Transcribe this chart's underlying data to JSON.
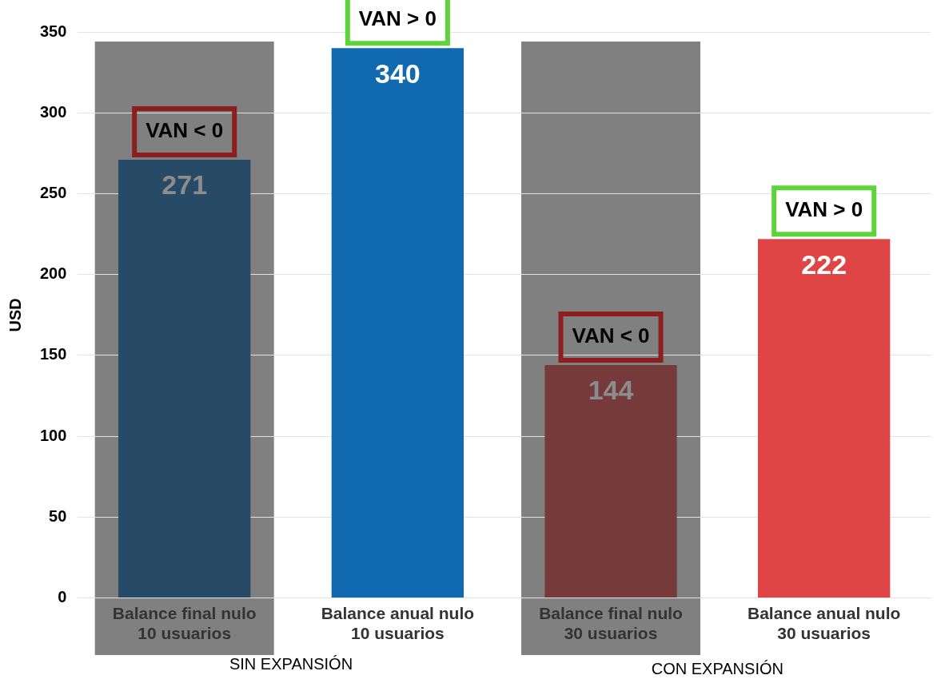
{
  "chart_data": {
    "type": "bar",
    "ylabel": "USD",
    "categories": [
      "Balance final nulo 10 usuarios",
      "Balance anual nulo 10 usuarios",
      "Balance final nulo 30 usuarios",
      "Balance anual nulo 30 usuarios"
    ],
    "values": [
      271,
      340,
      144,
      222
    ],
    "colors": [
      "#274a66",
      "#1169b0",
      "#773a3b",
      "#e04546"
    ],
    "ylim": [
      0,
      350
    ],
    "yticks": [
      0,
      50,
      100,
      150,
      200,
      250,
      300,
      350
    ],
    "grid": "y",
    "data_labels": true,
    "bands": [
      {
        "axis": "x",
        "from": "Balance final nulo 10 usuarios",
        "to": "Balance final nulo 10 usuarios",
        "color": "#808080"
      },
      {
        "axis": "x",
        "from": "Balance final nulo 30 usuarios",
        "to": "Balance final nulo 30 usuarios",
        "color": "#808080"
      }
    ],
    "annotations": [
      {
        "text": "VAN < 0",
        "x": "Balance final nulo 10 usuarios",
        "y": 271
      },
      {
        "text": "VAN > 0",
        "x": "Balance anual nulo 10 usuarios",
        "y": 340
      },
      {
        "text": "VAN < 0",
        "x": "Balance final nulo 30 usuarios",
        "y": 144
      },
      {
        "text": "VAN > 0",
        "x": "Balance anual nulo 30 usuarios",
        "y": 222
      },
      "SIN EXPANSIÓN",
      "CON EXPANSIÓN"
    ]
  }
}
